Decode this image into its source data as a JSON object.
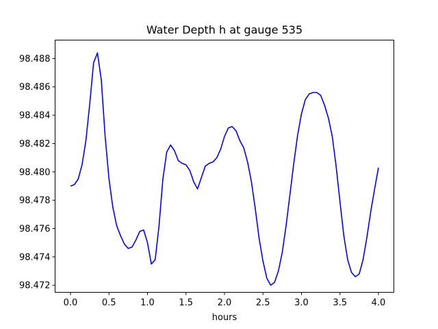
{
  "chart_data": {
    "type": "line",
    "title": "Water Depth h at gauge 535",
    "xlabel": "hours",
    "ylabel": "",
    "xlim": [
      -0.2,
      4.2
    ],
    "ylim": [
      98.4715,
      98.4893
    ],
    "grid": false,
    "x_ticks": [
      "0.0",
      "0.5",
      "1.0",
      "1.5",
      "2.0",
      "2.5",
      "3.0",
      "3.5",
      "4.0"
    ],
    "y_ticks": [
      "98.472",
      "98.474",
      "98.476",
      "98.478",
      "98.480",
      "98.482",
      "98.484",
      "98.486",
      "98.488"
    ],
    "series": [
      {
        "color": "#0000ff",
        "x": [
          0.0,
          0.05,
          0.1,
          0.15,
          0.2,
          0.25,
          0.3,
          0.35,
          0.4,
          0.45,
          0.5,
          0.55,
          0.6,
          0.65,
          0.7,
          0.75,
          0.8,
          0.85,
          0.9,
          0.95,
          1.0,
          1.05,
          1.1,
          1.15,
          1.2,
          1.25,
          1.3,
          1.35,
          1.4,
          1.45,
          1.5,
          1.55,
          1.6,
          1.65,
          1.7,
          1.75,
          1.8,
          1.85,
          1.9,
          1.95,
          2.0,
          2.05,
          2.1,
          2.15,
          2.2,
          2.25,
          2.3,
          2.35,
          2.4,
          2.45,
          2.5,
          2.55,
          2.6,
          2.65,
          2.7,
          2.75,
          2.8,
          2.85,
          2.9,
          2.95,
          3.0,
          3.05,
          3.1,
          3.15,
          3.2,
          3.25,
          3.3,
          3.35,
          3.4,
          3.45,
          3.5,
          3.55,
          3.6,
          3.65,
          3.7,
          3.75,
          3.8,
          3.85,
          3.9,
          3.95,
          4.0
        ],
        "y": [
          98.479,
          98.4791,
          98.4795,
          98.4805,
          98.4822,
          98.4848,
          98.4877,
          98.4884,
          98.4865,
          98.4825,
          98.4795,
          98.4775,
          98.4762,
          98.4755,
          98.4749,
          98.4746,
          98.4747,
          98.4752,
          98.4758,
          98.4759,
          98.475,
          98.4735,
          98.4738,
          98.4762,
          98.4795,
          98.4814,
          98.4819,
          98.4815,
          98.4808,
          98.4806,
          98.4805,
          98.4801,
          98.4793,
          98.4788,
          98.4796,
          98.4804,
          98.4806,
          98.4807,
          98.481,
          98.4816,
          98.4825,
          98.4831,
          98.4832,
          98.4829,
          98.4822,
          98.4817,
          98.4807,
          98.4793,
          98.4774,
          98.4753,
          98.4737,
          98.4725,
          98.472,
          98.4722,
          98.473,
          98.4743,
          98.4762,
          98.4784,
          98.4806,
          98.4826,
          98.4841,
          98.4851,
          98.4855,
          98.4856,
          98.4856,
          98.4854,
          98.4847,
          98.4838,
          98.4825,
          98.4804,
          98.4779,
          98.4755,
          98.4738,
          98.4729,
          98.4726,
          98.4728,
          98.4738,
          98.4754,
          98.4772,
          98.4788,
          98.4803
        ]
      }
    ]
  }
}
